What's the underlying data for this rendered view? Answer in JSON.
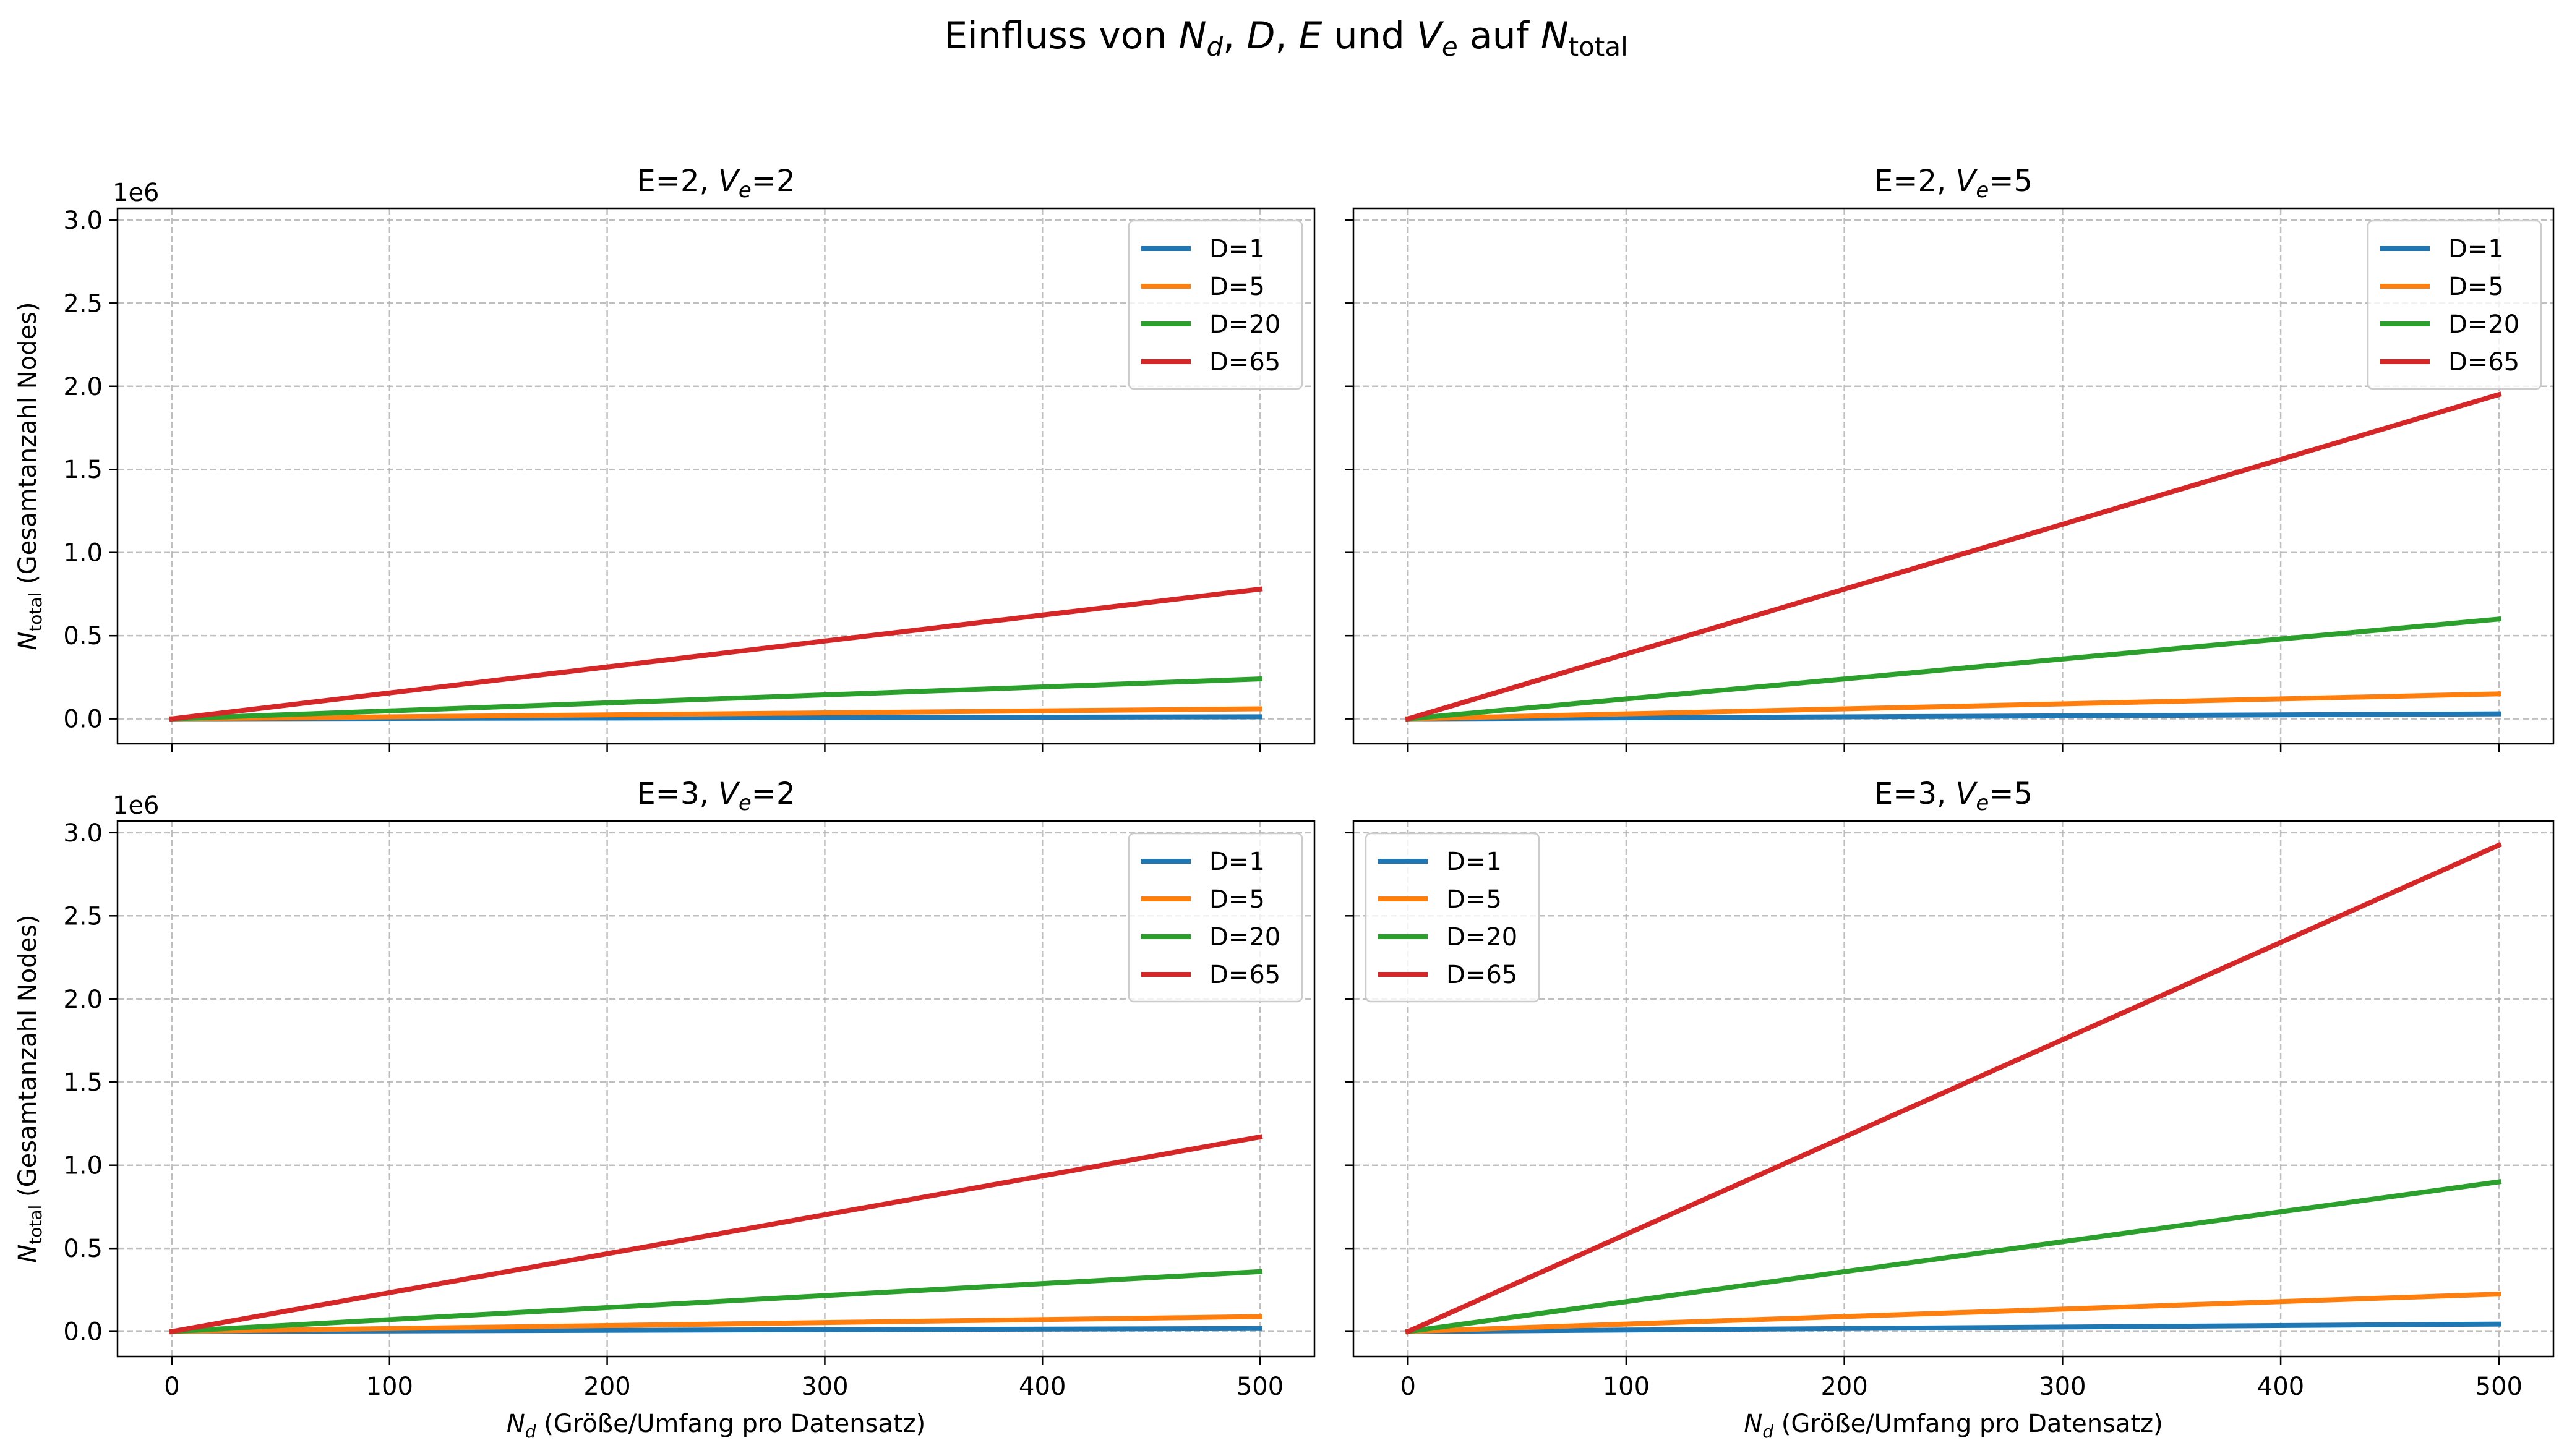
{
  "figure_title": "Einfluss von N_d, D, E und V_e auf N_total",
  "figure_title_parts": {
    "t1": "Einfluss von ",
    "n_main": "N",
    "n_sub": "d",
    "t2": ", ",
    "d": "D",
    "t3": ", ",
    "e": "E",
    "t4": " und ",
    "v_main": "V",
    "v_sub": "e",
    "t5": " auf ",
    "ntot_main": "N",
    "ntot_sub": "total"
  },
  "shared_labels": {
    "ylabel": "N_total (Gesamtanzahl Nodes)",
    "ylabel_main": "N",
    "ylabel_sub": "total",
    "ylabel_rest": " (Gesamtanzahl Nodes)",
    "xlabel": "N_d (Größe/Umfang pro Datensatz)",
    "xlabel_main": "N",
    "xlabel_sub": "d",
    "xlabel_rest": " (Größe/Umfang pro Datensatz)",
    "offset_text": "1e6",
    "x_ticks": [
      "0",
      "100",
      "200",
      "300",
      "400",
      "500"
    ],
    "y_ticks": [
      "0.0",
      "0.5",
      "1.0",
      "1.5",
      "2.0",
      "2.5",
      "3.0"
    ]
  },
  "colors": {
    "D=1": "#1f77b4",
    "D=5": "#ff7f0e",
    "D=20": "#2ca02c",
    "D=65": "#d62728"
  },
  "chart_data": [
    {
      "type": "line",
      "title": "E=2, V_e=2",
      "title_parts": {
        "a": "E=2, ",
        "v_main": "V",
        "v_sub": "e",
        "b": "=2"
      },
      "legend_position": "upper right",
      "xlim": [
        -25,
        525
      ],
      "ylim": [
        -0.15,
        3.07
      ],
      "y_scale_note": "1e6",
      "x": [
        0,
        500
      ],
      "series": [
        {
          "name": "D=1",
          "values": [
            0,
            0.012
          ]
        },
        {
          "name": "D=5",
          "values": [
            0,
            0.06
          ]
        },
        {
          "name": "D=20",
          "values": [
            0,
            0.24
          ]
        },
        {
          "name": "D=65",
          "values": [
            0,
            0.78
          ]
        }
      ]
    },
    {
      "type": "line",
      "title": "E=2, V_e=5",
      "title_parts": {
        "a": "E=2, ",
        "v_main": "V",
        "v_sub": "e",
        "b": "=5"
      },
      "legend_position": "upper right",
      "xlim": [
        -25,
        525
      ],
      "ylim": [
        -0.15,
        3.07
      ],
      "y_scale_note": "1e6",
      "x": [
        0,
        500
      ],
      "series": [
        {
          "name": "D=1",
          "values": [
            0,
            0.03
          ]
        },
        {
          "name": "D=5",
          "values": [
            0,
            0.15
          ]
        },
        {
          "name": "D=20",
          "values": [
            0,
            0.6
          ]
        },
        {
          "name": "D=65",
          "values": [
            0,
            1.95
          ]
        }
      ]
    },
    {
      "type": "line",
      "title": "E=3, V_e=2",
      "title_parts": {
        "a": "E=3, ",
        "v_main": "V",
        "v_sub": "e",
        "b": "=2"
      },
      "legend_position": "upper right",
      "xlim": [
        -25,
        525
      ],
      "ylim": [
        -0.15,
        3.07
      ],
      "y_scale_note": "1e6",
      "x": [
        0,
        500
      ],
      "series": [
        {
          "name": "D=1",
          "values": [
            0,
            0.018
          ]
        },
        {
          "name": "D=5",
          "values": [
            0,
            0.09
          ]
        },
        {
          "name": "D=20",
          "values": [
            0,
            0.36
          ]
        },
        {
          "name": "D=65",
          "values": [
            0,
            1.17
          ]
        }
      ]
    },
    {
      "type": "line",
      "title": "E=3, V_e=5",
      "title_parts": {
        "a": "E=3, ",
        "v_main": "V",
        "v_sub": "e",
        "b": "=5"
      },
      "legend_position": "upper left",
      "xlim": [
        -25,
        525
      ],
      "ylim": [
        -0.15,
        3.07
      ],
      "y_scale_note": "1e6",
      "x": [
        0,
        500
      ],
      "series": [
        {
          "name": "D=1",
          "values": [
            0,
            0.045
          ]
        },
        {
          "name": "D=5",
          "values": [
            0,
            0.225
          ]
        },
        {
          "name": "D=20",
          "values": [
            0,
            0.9
          ]
        },
        {
          "name": "D=65",
          "values": [
            0,
            2.925
          ]
        }
      ]
    }
  ]
}
